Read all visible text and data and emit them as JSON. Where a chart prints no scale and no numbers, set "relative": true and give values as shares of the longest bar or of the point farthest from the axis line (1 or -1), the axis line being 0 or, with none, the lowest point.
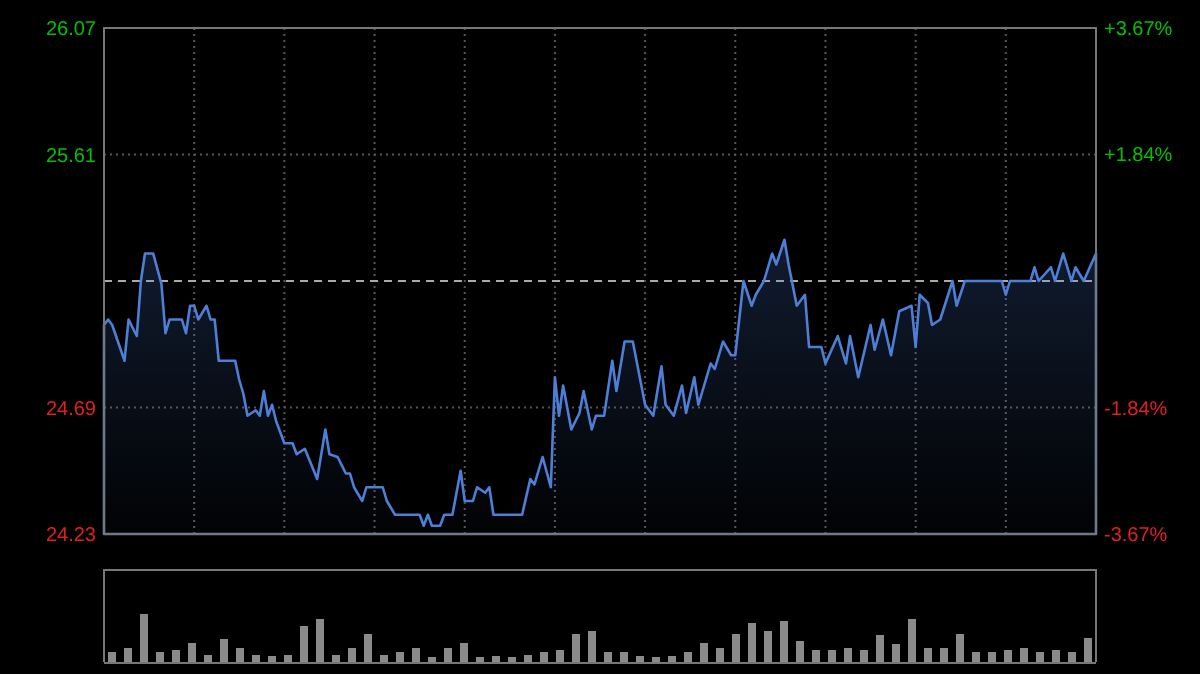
{
  "chart_data": [
    {
      "type": "area",
      "color": "#4d7fd6",
      "categories": [
        null,
        null,
        null,
        null,
        null,
        null,
        null,
        null,
        null,
        null,
        null,
        null,
        null,
        null,
        null,
        null,
        null,
        null,
        null,
        null,
        null,
        null,
        null,
        null,
        null,
        null,
        null,
        null,
        null,
        null,
        null,
        null,
        null,
        null,
        null,
        null,
        null,
        null,
        null,
        null,
        null,
        null,
        null,
        null,
        null,
        null,
        null,
        null,
        null,
        null,
        null,
        null,
        null,
        null,
        null,
        null,
        null,
        null,
        null,
        null,
        null,
        null,
        null,
        null,
        null,
        null,
        null,
        null,
        null,
        null,
        null,
        null,
        null,
        null,
        null,
        null,
        null,
        null,
        null,
        null,
        null,
        null,
        null,
        null,
        null,
        null,
        null,
        null,
        null,
        null,
        null,
        null,
        null,
        null,
        null,
        null,
        null,
        null,
        null,
        null,
        null,
        null,
        null,
        null,
        null,
        null,
        null,
        null,
        null,
        null,
        null,
        null,
        null,
        null,
        null,
        null,
        null,
        null,
        null,
        null,
        null,
        null,
        null,
        null,
        null,
        null,
        null,
        null,
        null,
        null,
        null,
        null,
        null,
        null,
        null,
        null,
        null,
        null,
        null,
        null,
        null,
        null,
        null,
        null,
        null,
        null,
        null,
        null,
        null,
        null,
        null,
        null,
        null,
        null,
        null,
        null,
        null,
        null,
        null,
        null,
        null,
        null,
        null,
        null,
        null,
        null,
        null,
        null,
        null,
        null,
        null,
        null,
        null,
        null,
        null,
        null,
        null,
        null,
        null,
        null,
        null,
        null,
        null,
        null,
        null,
        null,
        null,
        null,
        null,
        null,
        null,
        null,
        null,
        null,
        null,
        null,
        null,
        null,
        null,
        null,
        null,
        null,
        null,
        null,
        null,
        null,
        null,
        null,
        null,
        null,
        null,
        null,
        null,
        null,
        null,
        null,
        null,
        null,
        null,
        null,
        null,
        null,
        null,
        null,
        null,
        null,
        null,
        null,
        null,
        null,
        null,
        null,
        null,
        null,
        null,
        null,
        null,
        null,
        null,
        null,
        null,
        null,
        null
      ],
      "values": [
        24.99,
        25.01,
        24.99,
        null,
        null,
        24.86,
        25.01,
        null,
        24.95,
        25.15,
        25.25,
        null,
        25.25,
        null,
        25.14,
        24.96,
        25.01,
        25.01,
        25.01,
        25.01,
        24.96,
        25.06,
        25.06,
        25.01,
        null,
        25.06,
        25.01,
        25.01,
        24.86,
        24.86,
        24.86,
        24.86,
        24.86,
        24.79,
        24.74,
        24.66,
        null,
        24.68,
        24.66,
        24.75,
        24.66,
        24.7,
        24.64,
        null,
        24.56,
        24.56,
        24.56,
        24.52,
        null,
        24.54,
        null,
        null,
        24.43,
        null,
        24.61,
        24.52,
        null,
        24.51,
        null,
        24.45,
        24.45,
        24.4,
        null,
        24.35,
        24.4,
        24.4,
        24.4,
        24.4,
        24.4,
        24.35,
        null,
        24.3,
        24.3,
        24.3,
        24.3,
        24.3,
        24.3,
        24.3,
        24.26,
        24.3,
        24.26,
        24.26,
        24.26,
        24.3,
        24.3,
        24.3,
        null,
        24.46,
        24.35,
        24.35,
        24.35,
        24.4,
        null,
        24.38,
        24.4,
        24.3,
        24.3,
        24.3,
        24.3,
        24.3,
        24.3,
        24.3,
        24.3,
        null,
        24.43,
        24.41,
        null,
        24.51,
        null,
        24.4,
        24.8,
        24.66,
        24.77,
        null,
        24.61,
        null,
        24.67,
        24.75,
        null,
        24.61,
        24.66,
        null,
        24.66,
        null,
        24.86,
        24.75,
        null,
        24.93,
        24.93,
        24.93,
        null,
        null,
        24.7,
        null,
        24.66,
        null,
        24.84,
        24.7,
        null,
        24.66,
        null,
        24.77,
        24.67,
        null,
        24.8,
        24.7,
        null,
        null,
        24.85,
        24.83,
        null,
        24.93,
        null,
        24.88,
        24.88,
        null,
        25.15,
        null,
        25.06,
        25.1,
        null,
        25.15,
        null,
        25.25,
        25.21,
        null,
        25.3,
        25.21,
        null,
        25.06,
        null,
        25.1,
        24.91,
        24.91,
        24.91,
        24.91,
        24.85,
        null,
        null,
        24.95,
        null,
        24.85,
        24.95,
        null,
        24.8,
        null,
        null,
        24.99,
        24.9,
        null,
        25.01,
        null,
        24.88,
        null,
        25.04,
        null,
        null,
        25.06,
        24.91,
        25.1,
        null,
        25.07,
        24.99,
        null,
        25.01,
        null,
        null,
        25.15,
        25.06,
        null,
        25.15,
        25.15,
        25.15,
        25.15,
        25.15,
        25.15,
        25.15,
        25.15,
        25.15,
        25.15,
        25.1,
        25.15,
        25.15,
        25.15,
        25.15,
        25.15,
        25.15,
        25.2,
        25.15,
        null,
        null,
        25.2,
        25.15,
        null,
        25.25,
        null,
        25.15,
        25.2,
        null,
        25.15,
        null,
        null,
        25.25
      ],
      "ylim": [
        24.23,
        26.07
      ],
      "yticks": [
        24.23,
        24.69,
        25.61,
        26.07
      ],
      "y2lim": [
        -3.67,
        3.67
      ],
      "y2ticks": [
        {
          "value": -3.67,
          "label": "-3.67%"
        },
        {
          "value": -1.84,
          "label": "-1.84%"
        },
        {
          "value": 1.84,
          "label": "+1.84%"
        },
        {
          "value": 3.67,
          "label": "+3.67%"
        }
      ],
      "ref_lines": [
        {
          "axis": "y",
          "value": 25.15,
          "color": "#aaaaaa",
          "line_style": "dashed"
        }
      ],
      "grid": true,
      "tick_labels": "y"
    },
    {
      "type": "bar",
      "relative": true,
      "color": "#8a8a8a",
      "tick_labels": false,
      "categories": [
        null,
        null,
        null,
        null,
        null,
        null,
        null,
        null,
        null,
        null,
        null,
        null,
        null,
        null,
        null,
        null,
        null,
        null,
        null,
        null,
        null,
        null,
        null,
        null,
        null,
        null,
        null,
        null,
        null,
        null,
        null,
        null,
        null,
        null,
        null,
        null,
        null,
        null,
        null,
        null,
        null,
        null,
        null,
        null,
        null,
        null,
        null,
        null,
        null,
        null,
        null,
        null,
        null,
        null,
        null,
        null,
        null,
        null,
        null,
        null,
        null,
        null
      ],
      "values": [
        0.2,
        0.3,
        1.0,
        0.2,
        0.25,
        0.4,
        0.15,
        0.49,
        0.3,
        0.15,
        0.12,
        0.15,
        0.76,
        0.89,
        0.15,
        0.3,
        0.58,
        0.15,
        0.2,
        0.3,
        0.1,
        0.3,
        0.4,
        0.1,
        0.12,
        0.1,
        0.15,
        0.2,
        0.25,
        0.58,
        0.65,
        0.2,
        0.2,
        0.12,
        0.1,
        0.12,
        0.2,
        0.4,
        0.3,
        0.58,
        0.82,
        0.65,
        0.85,
        0.44,
        0.25,
        0.25,
        0.3,
        0.25,
        0.56,
        0.38,
        0.89,
        0.3,
        0.3,
        0.58,
        0.2,
        0.2,
        0.25,
        0.3,
        0.2,
        0.25,
        0.2,
        0.51
      ]
    }
  ]
}
